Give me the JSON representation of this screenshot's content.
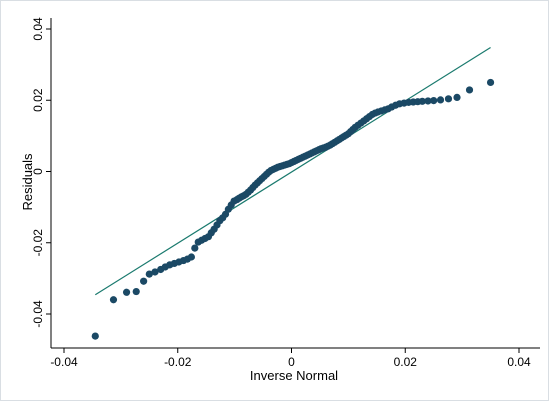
{
  "chart_data": {
    "type": "scatter",
    "title": "",
    "xlabel": "Inverse Normal",
    "ylabel": "Residuals",
    "xlim": [
      -0.04,
      0.04
    ],
    "ylim": [
      -0.048,
      0.043
    ],
    "x_ticks": [
      -0.04,
      -0.02,
      0,
      0.02,
      0.04
    ],
    "x_tick_labels": [
      "-0.04",
      "-0.02",
      "0",
      "0.02",
      "0.04"
    ],
    "y_ticks": [
      -0.04,
      -0.02,
      0,
      0.02,
      0.04
    ],
    "y_tick_labels": [
      "-0.04",
      "-0.02",
      "0",
      "0.02",
      "0.04"
    ],
    "grid": false,
    "legend": "none",
    "reference_line": {
      "x": [
        -0.0345,
        0.035
      ],
      "y": [
        -0.0346,
        0.0348
      ],
      "color": "#1a7a6e"
    },
    "marker_color": "#1b4965",
    "series": [
      {
        "points": [
          [
            -0.0345,
            -0.0462
          ],
          [
            -0.0313,
            -0.036
          ],
          [
            -0.029,
            -0.0339
          ],
          [
            -0.0273,
            -0.0337
          ],
          [
            -0.026,
            -0.0308
          ],
          [
            -0.025,
            -0.0288
          ],
          [
            -0.024,
            -0.0282
          ],
          [
            -0.023,
            -0.0275
          ],
          [
            -0.0222,
            -0.0268
          ],
          [
            -0.0214,
            -0.0262
          ],
          [
            -0.0206,
            -0.0258
          ],
          [
            -0.0198,
            -0.0254
          ],
          [
            -0.019,
            -0.025
          ],
          [
            -0.0183,
            -0.0246
          ],
          [
            -0.0176,
            -0.024
          ],
          [
            -0.017,
            -0.0215
          ],
          [
            -0.0164,
            -0.0198
          ],
          [
            -0.0158,
            -0.0193
          ],
          [
            -0.0152,
            -0.0188
          ],
          [
            -0.0146,
            -0.0183
          ],
          [
            -0.0141,
            -0.0172
          ],
          [
            -0.0136,
            -0.0162
          ],
          [
            -0.0131,
            -0.015
          ],
          [
            -0.0126,
            -0.0138
          ],
          [
            -0.0121,
            -0.013
          ],
          [
            -0.0116,
            -0.012
          ],
          [
            -0.0111,
            -0.0106
          ],
          [
            -0.0106,
            -0.0094
          ],
          [
            -0.0101,
            -0.0083
          ],
          [
            -0.0096,
            -0.0079
          ],
          [
            -0.0092,
            -0.0075
          ],
          [
            -0.0088,
            -0.0071
          ],
          [
            -0.0084,
            -0.0068
          ],
          [
            -0.008,
            -0.0064
          ],
          [
            -0.0076,
            -0.0058
          ],
          [
            -0.0072,
            -0.0052
          ],
          [
            -0.0068,
            -0.0045
          ],
          [
            -0.0064,
            -0.0038
          ],
          [
            -0.006,
            -0.0032
          ],
          [
            -0.0056,
            -0.0026
          ],
          [
            -0.0052,
            -0.002
          ],
          [
            -0.0048,
            -0.0014
          ],
          [
            -0.0044,
            -0.0008
          ],
          [
            -0.004,
            -0.0002
          ],
          [
            -0.0036,
            0.0003
          ],
          [
            -0.0032,
            0.0006
          ],
          [
            -0.0028,
            0.0009
          ],
          [
            -0.0024,
            0.0012
          ],
          [
            -0.002,
            0.0014
          ],
          [
            -0.0016,
            0.0016
          ],
          [
            -0.0012,
            0.0018
          ],
          [
            -0.0008,
            0.002
          ],
          [
            -0.0004,
            0.0022
          ],
          [
            0.0,
            0.0025
          ],
          [
            0.0004,
            0.0028
          ],
          [
            0.0008,
            0.0031
          ],
          [
            0.0012,
            0.0034
          ],
          [
            0.0016,
            0.0037
          ],
          [
            0.002,
            0.004
          ],
          [
            0.0024,
            0.0043
          ],
          [
            0.0028,
            0.0046
          ],
          [
            0.0032,
            0.0049
          ],
          [
            0.0036,
            0.0052
          ],
          [
            0.004,
            0.0055
          ],
          [
            0.0044,
            0.0058
          ],
          [
            0.0048,
            0.0061
          ],
          [
            0.0052,
            0.0064
          ],
          [
            0.0056,
            0.0066
          ],
          [
            0.006,
            0.0068
          ],
          [
            0.0064,
            0.0071
          ],
          [
            0.0068,
            0.0074
          ],
          [
            0.0072,
            0.0078
          ],
          [
            0.0076,
            0.0082
          ],
          [
            0.008,
            0.0086
          ],
          [
            0.0084,
            0.009
          ],
          [
            0.0088,
            0.0094
          ],
          [
            0.0092,
            0.0098
          ],
          [
            0.0096,
            0.0102
          ],
          [
            0.01,
            0.0106
          ],
          [
            0.0104,
            0.0112
          ],
          [
            0.0108,
            0.0118
          ],
          [
            0.0112,
            0.0124
          ],
          [
            0.0117,
            0.013
          ],
          [
            0.0122,
            0.0136
          ],
          [
            0.0127,
            0.0142
          ],
          [
            0.0132,
            0.0148
          ],
          [
            0.0137,
            0.0154
          ],
          [
            0.0142,
            0.016
          ],
          [
            0.0147,
            0.0164
          ],
          [
            0.0152,
            0.0167
          ],
          [
            0.0158,
            0.017
          ],
          [
            0.0164,
            0.0173
          ],
          [
            0.017,
            0.0176
          ],
          [
            0.0176,
            0.0181
          ],
          [
            0.0183,
            0.0186
          ],
          [
            0.019,
            0.019
          ],
          [
            0.0198,
            0.0192
          ],
          [
            0.0206,
            0.0194
          ],
          [
            0.0214,
            0.0195
          ],
          [
            0.0222,
            0.0196
          ],
          [
            0.023,
            0.0197
          ],
          [
            0.024,
            0.0198
          ],
          [
            0.025,
            0.0199
          ],
          [
            0.0262,
            0.0201
          ],
          [
            0.0276,
            0.0204
          ],
          [
            0.0291,
            0.0208
          ],
          [
            0.0313,
            0.0229
          ],
          [
            0.035,
            0.025
          ]
        ]
      }
    ]
  }
}
